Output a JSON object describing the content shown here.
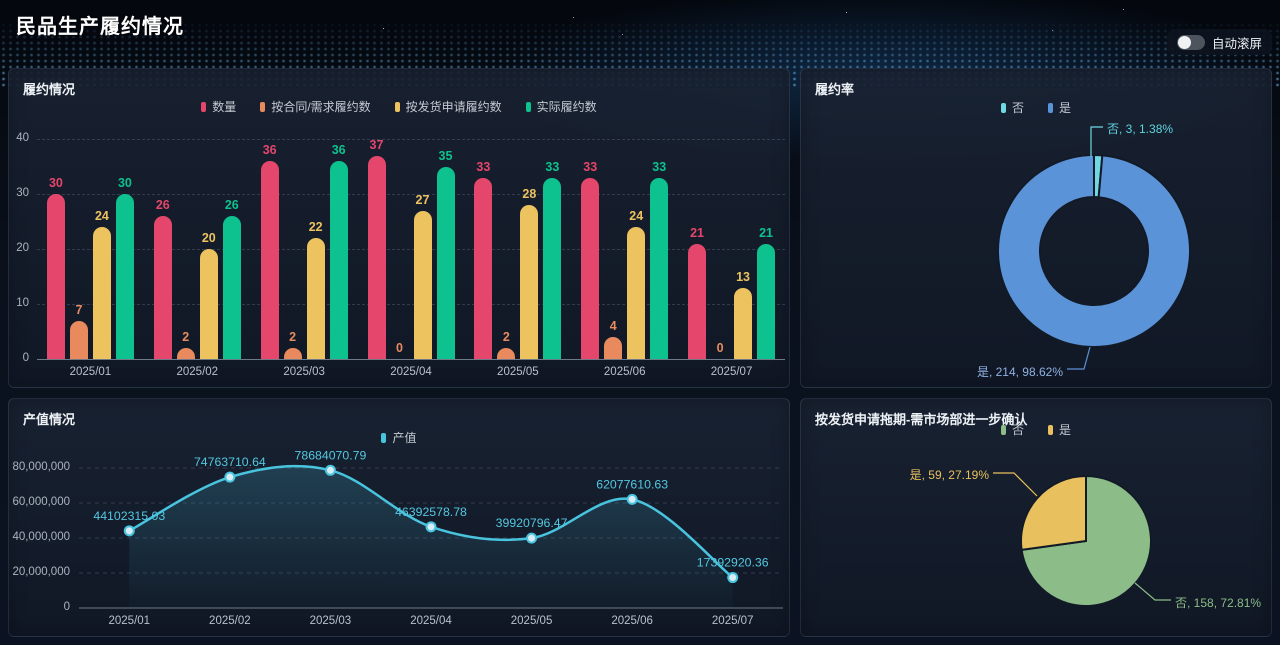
{
  "page": {
    "title": "民品生产履约情况"
  },
  "toolbar": {
    "auto_scroll_label": "自动滚屏",
    "auto_scroll_state": "off"
  },
  "chart_data": [
    {
      "id": "performance-bar",
      "type": "bar",
      "title": "履约情况",
      "categories": [
        "2025/01",
        "2025/02",
        "2025/03",
        "2025/04",
        "2025/05",
        "2025/06",
        "2025/07"
      ],
      "series": [
        {
          "name": "数量",
          "color": "#e5466b",
          "values": [
            30,
            26,
            36,
            37,
            33,
            33,
            21
          ]
        },
        {
          "name": "按合同/需求履约数",
          "color": "#e88a5e",
          "values": [
            7,
            2,
            2,
            0,
            2,
            4,
            0
          ]
        },
        {
          "name": "按发货申请履约数",
          "color": "#edc35f",
          "values": [
            24,
            20,
            22,
            27,
            28,
            24,
            13
          ]
        },
        {
          "name": "实际履约数",
          "color": "#0dc28e",
          "values": [
            30,
            26,
            36,
            35,
            33,
            33,
            21
          ]
        }
      ],
      "xlabel": "",
      "ylabel": "",
      "ylim": [
        0,
        40
      ],
      "yticks": [
        0,
        10,
        20,
        30,
        40
      ],
      "grid": true,
      "legend_position": "top"
    },
    {
      "id": "rate-donut",
      "type": "pie",
      "title": "履约率",
      "donut": true,
      "slices": [
        {
          "name": "否",
          "value": 3,
          "pct": "1.38%",
          "color": "#6fd8e2",
          "label": "否, 3, 1.38%",
          "label_color": "#5fd3de"
        },
        {
          "name": "是",
          "value": 214,
          "pct": "98.62%",
          "color": "#5b93d8",
          "label": "是, 214, 98.62%",
          "label_color": "#8fb3e3"
        }
      ],
      "legend_position": "top"
    },
    {
      "id": "output-line",
      "type": "line",
      "title": "产值情况",
      "categories": [
        "2025/01",
        "2025/02",
        "2025/03",
        "2025/04",
        "2025/05",
        "2025/06",
        "2025/07"
      ],
      "series": [
        {
          "name": "产值",
          "color": "#49c4de",
          "values": [
            44102315.03,
            74763710.64,
            78684070.79,
            46392578.78,
            39920796.47,
            62077610.63,
            17392920.36
          ],
          "labels": [
            "44102315.03",
            "74763710.64",
            "78684070.79",
            "46392578.78",
            "39920796.47",
            "62077610.63",
            "17392920.36"
          ]
        }
      ],
      "xlabel": "",
      "ylabel": "",
      "ylim": [
        0,
        80000000
      ],
      "yticks": [
        "0",
        "20,000,000",
        "40,000,000",
        "60,000,000",
        "80,000,000"
      ],
      "area": true,
      "grid": true,
      "legend_position": "top"
    },
    {
      "id": "delay-pie",
      "type": "pie",
      "title": "按发货申请拖期-需市场部进一步确认",
      "donut": false,
      "slices": [
        {
          "name": "否",
          "value": 158,
          "pct": "72.81%",
          "color": "#8cbd89",
          "label": "否, 158, 72.81%",
          "label_color": "#8cbd89"
        },
        {
          "name": "是",
          "value": 59,
          "pct": "27.19%",
          "color": "#e8c05e",
          "label": "是, 59, 27.19%",
          "label_color": "#e8c05e"
        }
      ],
      "legend_position": "top"
    }
  ]
}
